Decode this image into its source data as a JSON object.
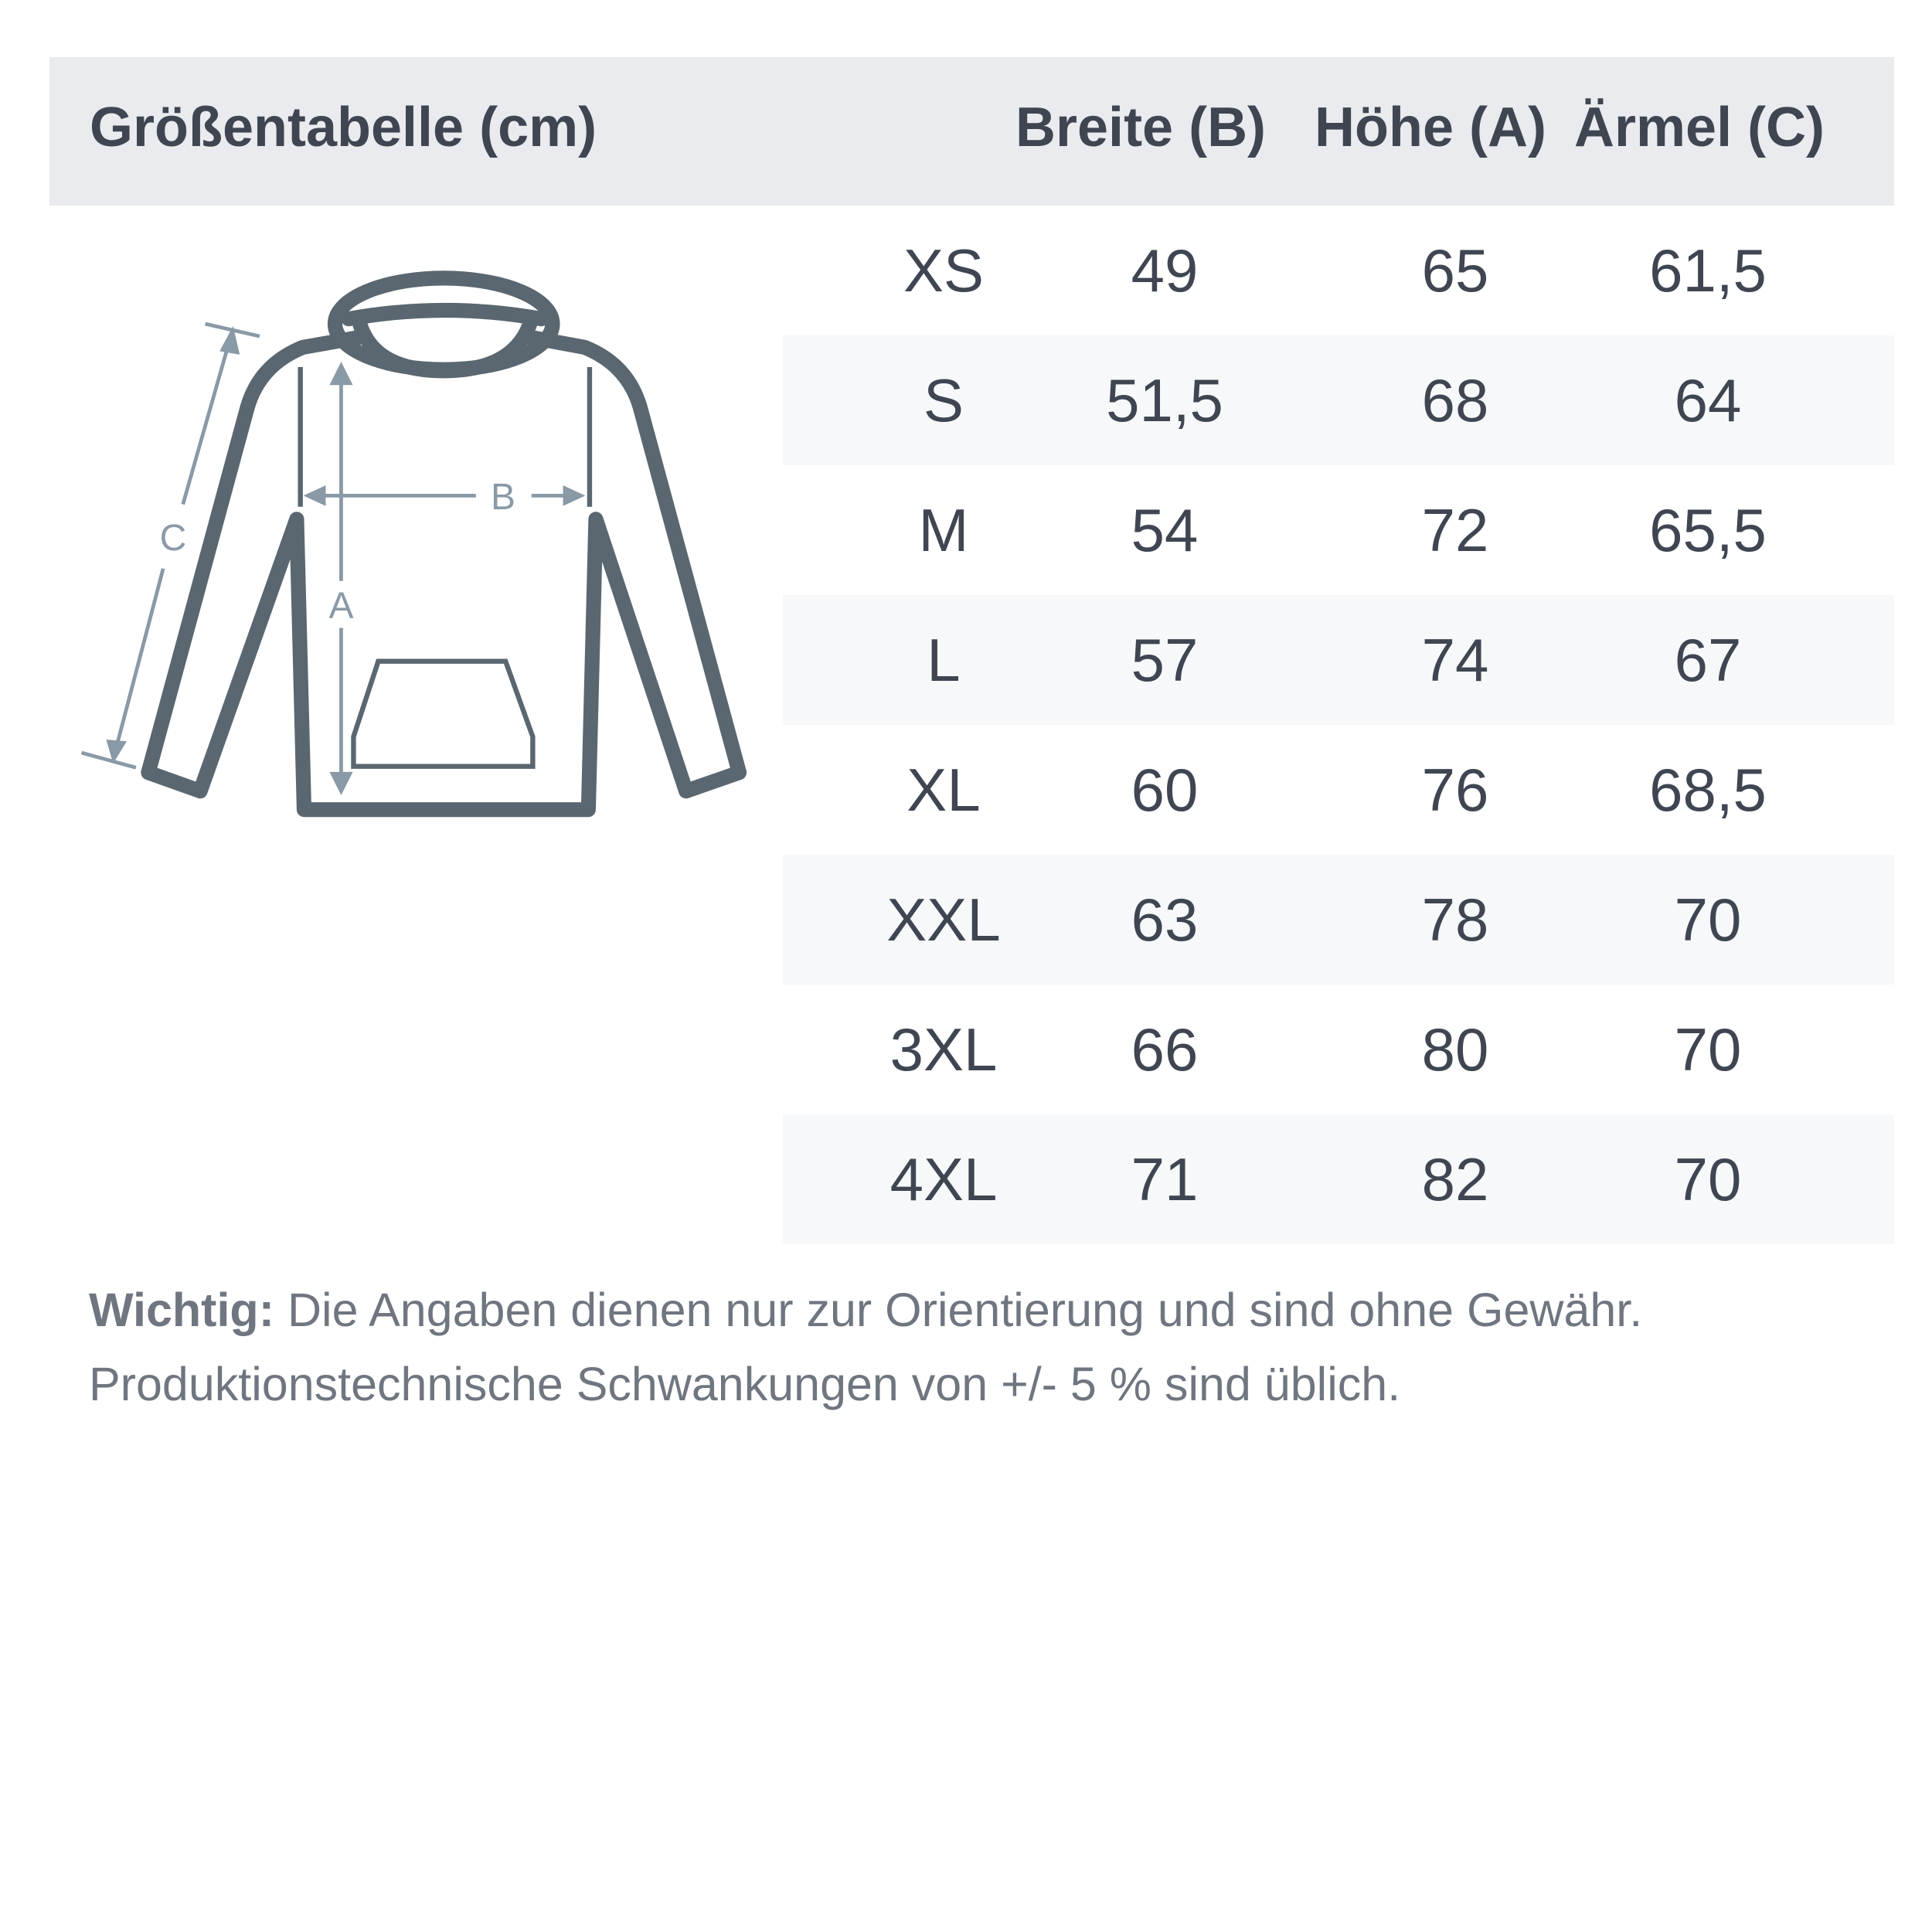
{
  "header": {
    "title": "Größentabelle (cm)",
    "columns": [
      "Breite (B)",
      "Höhe (A)",
      "Ärmel (C)"
    ]
  },
  "diagram": {
    "labels": {
      "a": "A",
      "b": "B",
      "c": "C"
    },
    "outline_color": "#5a6770",
    "arrow_color": "#8a99a6"
  },
  "table": {
    "rows": [
      {
        "size": "XS",
        "breite": "49",
        "hoehe": "65",
        "aermel": "61,5"
      },
      {
        "size": "S",
        "breite": "51,5",
        "hoehe": "68",
        "aermel": "64"
      },
      {
        "size": "M",
        "breite": "54",
        "hoehe": "72",
        "aermel": "65,5"
      },
      {
        "size": "L",
        "breite": "57",
        "hoehe": "74",
        "aermel": "67"
      },
      {
        "size": "XL",
        "breite": "60",
        "hoehe": "76",
        "aermel": "68,5"
      },
      {
        "size": "XXL",
        "breite": "63",
        "hoehe": "78",
        "aermel": "70"
      },
      {
        "size": "3XL",
        "breite": "66",
        "hoehe": "80",
        "aermel": "70"
      },
      {
        "size": "4XL",
        "breite": "71",
        "hoehe": "82",
        "aermel": "70"
      }
    ]
  },
  "note": {
    "label": "Wichtig:",
    "line1": " Die Angaben dienen nur zur Orientierung und sind ohne Gewähr.",
    "line2": "Produktionstechnische Schwankungen von +/- 5 % sind üblich."
  }
}
